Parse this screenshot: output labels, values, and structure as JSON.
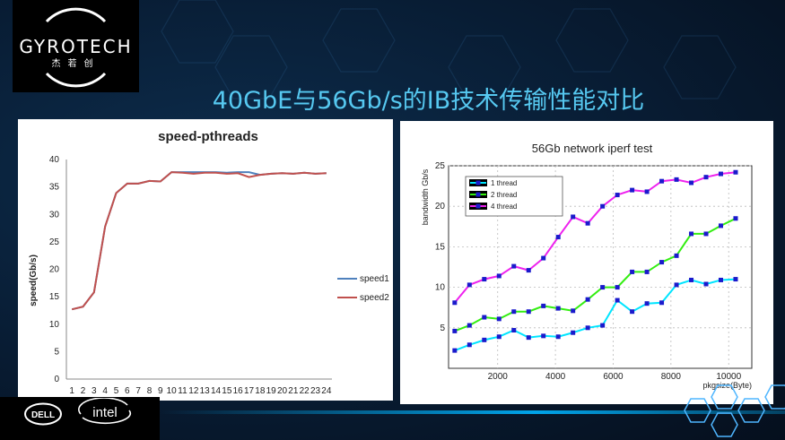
{
  "logo": {
    "name": "GYROTECH",
    "sub": "杰若创"
  },
  "slide_title": "40GbE与56Gb/s的IB技术传输性能对比",
  "brands": {
    "dell": "DELL",
    "intel": "intel"
  },
  "colors": {
    "title": "#56c8f0",
    "speed1": "#4f81bd",
    "speed2": "#c0504d",
    "t1": "#00e5ff",
    "t2": "#33ee11",
    "t4": "#ee22ee",
    "marker": "#1a1acc"
  },
  "chart_data": [
    {
      "type": "line",
      "title": "speed-pthreads",
      "xlabel": "",
      "ylabel": "speed(Gb/s)",
      "ylim": [
        0,
        40
      ],
      "yticks": [
        0,
        5,
        10,
        15,
        20,
        25,
        30,
        35,
        40
      ],
      "categories": [
        "1",
        "2",
        "3",
        "4",
        "5",
        "6",
        "7",
        "8",
        "9",
        "10",
        "11",
        "12",
        "13",
        "14",
        "15",
        "16",
        "17",
        "18",
        "19",
        "20",
        "21",
        "22",
        "23",
        "24"
      ],
      "legend_position": "right",
      "series": [
        {
          "name": "speed1",
          "values": [
            12.7,
            13.2,
            15.8,
            27.8,
            33.9,
            35.6,
            35.6,
            36.1,
            36.0,
            37.7,
            37.7,
            37.7,
            37.7,
            37.7,
            37.6,
            37.7,
            37.7,
            37.2,
            37.4,
            37.5,
            37.4,
            37.6,
            37.4,
            37.5
          ]
        },
        {
          "name": "speed2",
          "values": [
            12.7,
            13.2,
            15.8,
            27.8,
            33.9,
            35.6,
            35.6,
            36.1,
            36.0,
            37.7,
            37.6,
            37.4,
            37.6,
            37.6,
            37.4,
            37.5,
            36.8,
            37.2,
            37.4,
            37.5,
            37.4,
            37.6,
            37.4,
            37.5
          ]
        }
      ]
    },
    {
      "type": "line",
      "title": "56Gb network iperf test",
      "xlabel": "pkgsize(Byte)",
      "ylabel": "bandwidth Gb/s",
      "xlim": [
        300,
        10800
      ],
      "ylim": [
        0,
        25
      ],
      "xticks": [
        2000,
        4000,
        6000,
        8000,
        10000
      ],
      "yticks": [
        5,
        10,
        15,
        20,
        25
      ],
      "legend_position": "top-left",
      "x": [
        512,
        1024,
        1536,
        2048,
        2560,
        3072,
        3584,
        4096,
        4608,
        5120,
        5632,
        6144,
        6656,
        7168,
        7680,
        8192,
        8704,
        9216,
        9728,
        10240
      ],
      "series": [
        {
          "name": "1 thread",
          "values": [
            2.2,
            2.9,
            3.5,
            3.9,
            4.7,
            3.8,
            4.0,
            3.9,
            4.4,
            5.0,
            5.3,
            8.4,
            7.0,
            8.0,
            8.1,
            10.3,
            10.9,
            10.4,
            10.9,
            11.0
          ]
        },
        {
          "name": "2 thread",
          "values": [
            4.6,
            5.3,
            6.3,
            6.1,
            7.0,
            7.0,
            7.7,
            7.4,
            7.1,
            8.5,
            10.0,
            10.0,
            11.9,
            11.9,
            13.1,
            13.9,
            16.6,
            16.6,
            17.6,
            18.5
          ]
        },
        {
          "name": "4 thread",
          "values": [
            8.1,
            10.3,
            11.0,
            11.4,
            12.6,
            12.1,
            13.6,
            16.2,
            18.7,
            17.9,
            20.0,
            21.4,
            22.0,
            21.8,
            23.1,
            23.3,
            22.9,
            23.6,
            24.0,
            24.2
          ]
        }
      ]
    }
  ]
}
